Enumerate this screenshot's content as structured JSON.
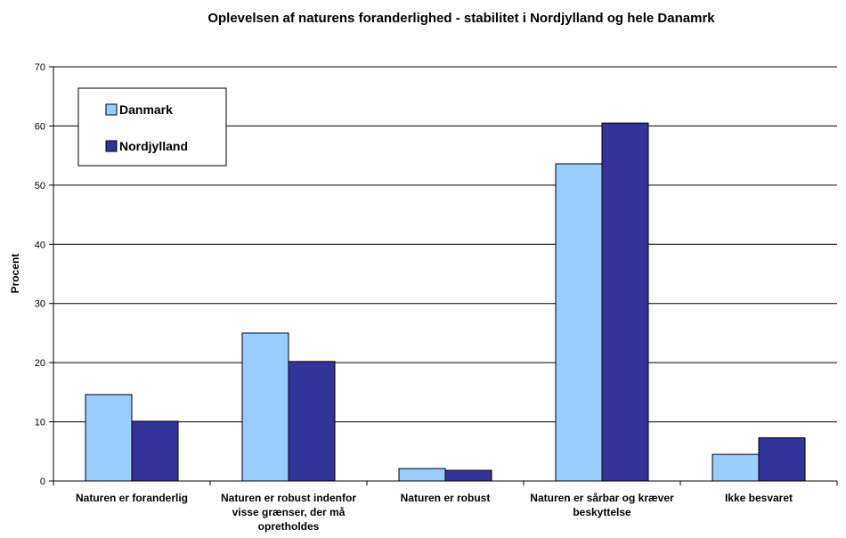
{
  "chart_data": {
    "type": "bar",
    "title": "Oplevelsen af naturens foranderlighed - stabilitet i Nordjylland og hele Danamrk",
    "y_label": "Procent",
    "categories": [
      "Naturen er foranderlig",
      "Naturen er robust indenfor visse grænser, der må opretholdes",
      "Naturen er robust",
      "Naturen er sårbar og kræver beskyttelse",
      "Ikke besvaret"
    ],
    "series": [
      {
        "name": "Danmark",
        "color": "#99ccff",
        "values": [
          14.6,
          25,
          2.1,
          53.6,
          4.5
        ]
      },
      {
        "name": "Nordjylland",
        "color": "#333399",
        "values": [
          10.1,
          20.2,
          1.8,
          60.5,
          7.3
        ]
      }
    ],
    "ylim": [
      0,
      70
    ],
    "yticks": [
      0,
      10,
      20,
      30,
      40,
      50,
      60,
      70
    ],
    "grid": true,
    "legend": "upper left"
  }
}
